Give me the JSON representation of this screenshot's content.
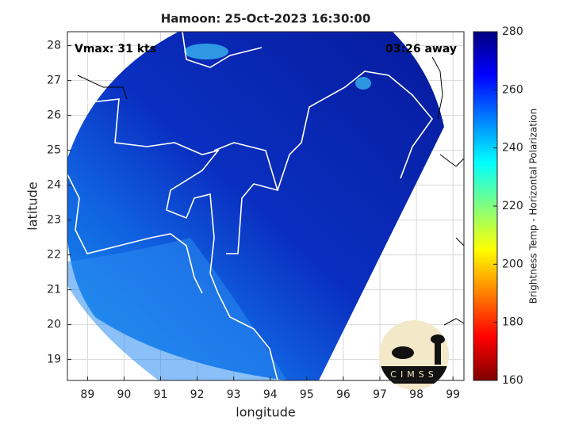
{
  "chart_data": {
    "type": "map",
    "title": "Hamoon: 25-Oct-2023 16:30:00",
    "annotations": [
      "Vmax: 31 kts",
      "03:26 away"
    ],
    "xlabel": "longitude",
    "ylabel": "latitude",
    "xlim": [
      88.45,
      99.3
    ],
    "ylim": [
      18.4,
      28.4
    ],
    "xticks": [
      89,
      90,
      91,
      92,
      93,
      94,
      95,
      96,
      97,
      98,
      99
    ],
    "yticks": [
      19,
      20,
      21,
      22,
      23,
      24,
      25,
      26,
      27,
      28
    ],
    "grid": true,
    "colorbar": {
      "label": "Brightness Temp - Horizontal Polarization",
      "lim": [
        160,
        280
      ],
      "ticks": [
        160,
        180,
        200,
        220,
        240,
        260,
        280
      ],
      "colormap": [
        "#7f0000",
        "#ff0000",
        "#ffff00",
        "#00ffff",
        "#0000ff",
        "#00007f"
      ]
    },
    "logo": "CIMSS"
  }
}
